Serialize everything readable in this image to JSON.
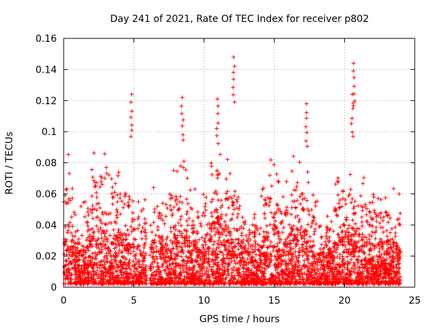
{
  "chart_data": {
    "type": "scatter",
    "title": "Day 241 of 2021, Rate Of TEC Index for receiver p802",
    "xlabel": "GPS time / hours",
    "ylabel": "ROTI / TECUs",
    "xlim": [
      0,
      25
    ],
    "ylim": [
      0,
      0.16
    ],
    "x_ticks": [
      "0",
      "5",
      "10",
      "15",
      "20",
      "25"
    ],
    "y_ticks": [
      "0",
      "0.02",
      "0.04",
      "0.06",
      "0.08",
      "0.1",
      "0.12",
      "0.14",
      "0.16"
    ],
    "grid": true,
    "marker": "+",
    "color": "#ff0000",
    "x_range_of_data": [
      0,
      24
    ],
    "data_gaps_hours": [
      [
        5.9,
        6.15
      ]
    ],
    "notable_peaks": [
      {
        "x": 4.85,
        "y": 0.124
      },
      {
        "x": 8.45,
        "y": 0.122
      },
      {
        "x": 10.95,
        "y": 0.121
      },
      {
        "x": 12.1,
        "y": 0.148
      },
      {
        "x": 17.3,
        "y": 0.118
      },
      {
        "x": 20.65,
        "y": 0.144
      },
      {
        "x": 20.55,
        "y": 0.124
      }
    ]
  }
}
